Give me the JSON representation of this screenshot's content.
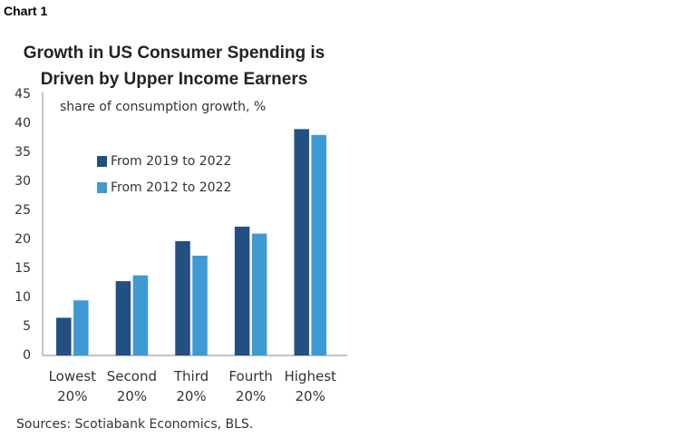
{
  "label": "Chart 1",
  "chart_data": {
    "type": "bar",
    "title": "Growth in US Consumer Spending is Driven by Upper Income Earners",
    "subtitle": "share of consumption growth, %",
    "categories": [
      "Lowest 20%",
      "Second 20%",
      "Third 20%",
      "Fourth 20%",
      "Highest 20%"
    ],
    "series": [
      {
        "name": "From 2019 to 2022",
        "color": "#234f83",
        "values": [
          6.5,
          12.8,
          19.7,
          22.2,
          39.0
        ]
      },
      {
        "name": "From 2012 to 2022",
        "color": "#3d9ad3",
        "values": [
          9.5,
          13.8,
          17.2,
          21.0,
          38.0
        ]
      }
    ],
    "ylim": [
      0,
      45
    ],
    "yticks": [
      0,
      5,
      10,
      15,
      20,
      25,
      30,
      35,
      40,
      45
    ],
    "grid": false,
    "legend": "upper-left",
    "source": "Sources: Scotiabank Economics, BLS."
  }
}
